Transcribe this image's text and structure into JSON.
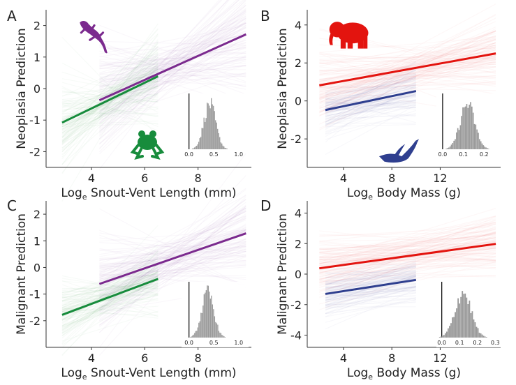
{
  "chart_data": [
    {
      "type": "line",
      "panel_label": "A",
      "ylabel": "Neoplasia Prediction",
      "xlabel_main": "Log",
      "xlabel_sub": "e",
      "xlabel_rest": " Snout-Vent Length (mm)",
      "xlim": [
        2.3,
        10
      ],
      "ylim": [
        -2.5,
        2.5
      ],
      "xticks": [
        4,
        6,
        8
      ],
      "xtick_labels": [
        "4",
        "6",
        "8"
      ],
      "yticks": [
        -2,
        -1,
        0,
        1,
        2
      ],
      "ytick_labels": [
        "-2",
        "-1",
        "0",
        "1",
        "2"
      ],
      "grid": false,
      "series": [
        {
          "color": "#7b2a8e",
          "x": [
            4.3,
            9.8
          ],
          "y": [
            -0.37,
            1.72
          ]
        },
        {
          "color": "#178c3c",
          "x": [
            2.9,
            6.5
          ],
          "y": [
            -1.08,
            0.39
          ]
        }
      ],
      "icons": [
        {
          "name": "lizard-icon",
          "color": "#7b2a8e"
        },
        {
          "name": "frog-icon",
          "color": "#178c3c"
        }
      ],
      "inset": {
        "xlim": [
          -0.15,
          1.2
        ],
        "xticks": [
          0.0,
          0.5,
          1.0
        ],
        "xtick_labels": [
          "0.0",
          "0.5",
          "1.0"
        ],
        "center": 0.42,
        "spread": 0.12
      }
    },
    {
      "type": "line",
      "panel_label": "B",
      "ylabel": "Neoplasia Prediction",
      "xlabel_main": "Log",
      "xlabel_sub": "e",
      "xlabel_rest": " Body Mass (g)",
      "xlim": [
        1,
        17
      ],
      "ylim": [
        -3.5,
        4.8
      ],
      "xticks": [
        4,
        8,
        12
      ],
      "xtick_labels": [
        "4",
        "8",
        "12"
      ],
      "yticks": [
        -2,
        0,
        2,
        4
      ],
      "ytick_labels": [
        "-2",
        "0",
        "2",
        "4"
      ],
      "grid": false,
      "series": [
        {
          "color": "#e3140f",
          "x": [
            2,
            16.6
          ],
          "y": [
            0.82,
            2.5
          ]
        },
        {
          "color": "#2f3f8f",
          "x": [
            2.5,
            10
          ],
          "y": [
            -0.48,
            0.52
          ]
        }
      ],
      "icons": [
        {
          "name": "elephant-icon",
          "color": "#e3140f"
        },
        {
          "name": "duck-icon",
          "color": "#2f3f8f"
        }
      ],
      "inset": {
        "xlim": [
          -0.03,
          0.28
        ],
        "xticks": [
          0.0,
          0.1,
          0.2
        ],
        "xtick_labels": [
          "0.0",
          "0.1",
          "0.2"
        ],
        "center": 0.12,
        "spread": 0.035
      }
    },
    {
      "type": "line",
      "panel_label": "C",
      "ylabel": "Malignant Prediction",
      "xlabel_main": "Log",
      "xlabel_sub": "e",
      "xlabel_rest": " Snout-Vent Length (mm)",
      "xlim": [
        2.3,
        10
      ],
      "ylim": [
        -3,
        2.5
      ],
      "xticks": [
        4,
        6,
        8
      ],
      "xtick_labels": [
        "4",
        "6",
        "8"
      ],
      "yticks": [
        -2,
        -1,
        0,
        1,
        2
      ],
      "ytick_labels": [
        "-2",
        "-1",
        "0",
        "1",
        "2"
      ],
      "grid": false,
      "series": [
        {
          "color": "#7b2a8e",
          "x": [
            4.3,
            9.8
          ],
          "y": [
            -0.62,
            1.28
          ]
        },
        {
          "color": "#178c3c",
          "x": [
            2.9,
            6.5
          ],
          "y": [
            -1.78,
            -0.43
          ]
        }
      ],
      "icons": [],
      "inset": {
        "xlim": [
          -0.15,
          1.2
        ],
        "xticks": [
          0.0,
          0.5,
          1.0
        ],
        "xtick_labels": [
          "0.0",
          "0.5",
          "1.0"
        ],
        "center": 0.38,
        "spread": 0.12
      }
    },
    {
      "type": "line",
      "panel_label": "D",
      "ylabel": "Malignant Prediction",
      "xlabel_main": "Log",
      "xlabel_sub": "e",
      "xlabel_rest": " Body Mass (g)",
      "xlim": [
        1,
        17
      ],
      "ylim": [
        -4.8,
        4.8
      ],
      "xticks": [
        4,
        8,
        12
      ],
      "xtick_labels": [
        "4",
        "8",
        "12"
      ],
      "yticks": [
        -4,
        -2,
        0,
        2,
        4
      ],
      "ytick_labels": [
        "-4",
        "-2",
        "0",
        "2",
        "4"
      ],
      "grid": false,
      "series": [
        {
          "color": "#e3140f",
          "x": [
            2,
            16.6
          ],
          "y": [
            0.38,
            1.98
          ]
        },
        {
          "color": "#2f3f8f",
          "x": [
            2.5,
            10
          ],
          "y": [
            -1.3,
            -0.38
          ]
        }
      ],
      "icons": [],
      "inset": {
        "xlim": [
          -0.03,
          0.33
        ],
        "xticks": [
          0.0,
          0.1,
          0.2,
          0.3
        ],
        "xtick_labels": [
          "0.0",
          "0.1",
          "0.2",
          "0.3"
        ],
        "center": 0.12,
        "spread": 0.045
      }
    }
  ]
}
